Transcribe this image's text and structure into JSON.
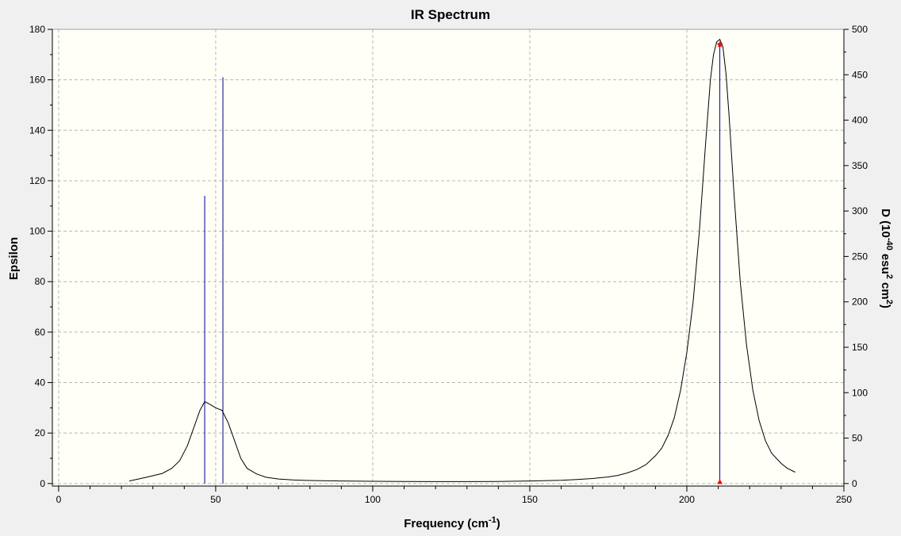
{
  "window": {
    "background": "#f0f0f0",
    "plot_background": "#fffff8"
  },
  "chart_data": {
    "type": "line",
    "title": "IR Spectrum",
    "xlabel": "Frequency (cm",
    "xlabel_sup": "-1",
    "xlabel_close": ")",
    "ylabel_left": "Epsilon",
    "ylabel_right_parts": [
      {
        "text": "D (10",
        "sup": false
      },
      {
        "text": "-40",
        "sup": true
      },
      {
        "text": " esu",
        "sup": false
      },
      {
        "text": "2",
        "sup": true
      },
      {
        "text": " cm",
        "sup": false
      },
      {
        "text": "2",
        "sup": true
      },
      {
        "text": ")",
        "sup": false
      }
    ],
    "xlim": [
      -2,
      250
    ],
    "ylim_left": [
      -1,
      180
    ],
    "ylim_right": [
      0,
      500
    ],
    "x_ticks": [
      0,
      50,
      100,
      150,
      200,
      250
    ],
    "x_tick_labels": [
      "0",
      "50",
      "100",
      "150",
      "200",
      "250"
    ],
    "y_left_ticks": [
      0,
      20,
      40,
      60,
      80,
      100,
      120,
      140,
      160,
      180
    ],
    "y_left_tick_labels": [
      "0",
      "20",
      "40",
      "60",
      "80",
      "100",
      "120",
      "140",
      "160",
      "180"
    ],
    "y_right_ticks": [
      0,
      50,
      100,
      150,
      200,
      250,
      300,
      350,
      400,
      450,
      500
    ],
    "y_right_tick_labels": [
      "0",
      "50",
      "100",
      "150",
      "200",
      "250",
      "300",
      "350",
      "400",
      "450",
      "500"
    ],
    "grid": true,
    "colors": {
      "curve": "#000000",
      "stick": "#00008b",
      "marker": "#ff0000",
      "grid": "#b8b8b8"
    },
    "series": [
      {
        "x": [
          22.5,
          28,
          33,
          36,
          38.5,
          41,
          43,
          45,
          46.5,
          48,
          50,
          52,
          54,
          56,
          58,
          60,
          63,
          66,
          70,
          75,
          80,
          90,
          100,
          110,
          120,
          130,
          140,
          150,
          160,
          165,
          170,
          175,
          178,
          181,
          184,
          187,
          190,
          192,
          194,
          196,
          198,
          200,
          202,
          204,
          206,
          207.5,
          208.5,
          209.5,
          210.5,
          211.5,
          212.5,
          213.5,
          215,
          217,
          219,
          221,
          223,
          225,
          227,
          230,
          232,
          234.5
        ],
        "y": [
          1,
          2.5,
          4,
          6,
          9,
          15,
          22,
          29,
          32.5,
          31.5,
          30,
          29,
          24,
          17,
          10,
          6,
          3.8,
          2.5,
          1.8,
          1.4,
          1.2,
          1.0,
          0.9,
          0.8,
          0.75,
          0.75,
          0.8,
          1.0,
          1.3,
          1.6,
          2.0,
          2.6,
          3.2,
          4.2,
          5.5,
          7.5,
          11,
          14,
          19,
          26,
          37,
          52,
          72,
          100,
          135,
          160,
          170,
          175,
          176,
          173,
          162,
          145,
          115,
          80,
          55,
          37,
          25,
          17,
          12,
          8,
          6,
          4.5
        ]
      }
    ],
    "sticks": [
      {
        "x": 46.5,
        "y": 114
      },
      {
        "x": 52.3,
        "y": 161
      },
      {
        "x": 210.5,
        "y": 174
      }
    ],
    "markers": [
      {
        "x": 210.5,
        "y": 174,
        "symbol": "star"
      },
      {
        "x": 210.5,
        "y": 0,
        "symbol": "triangle"
      }
    ]
  }
}
